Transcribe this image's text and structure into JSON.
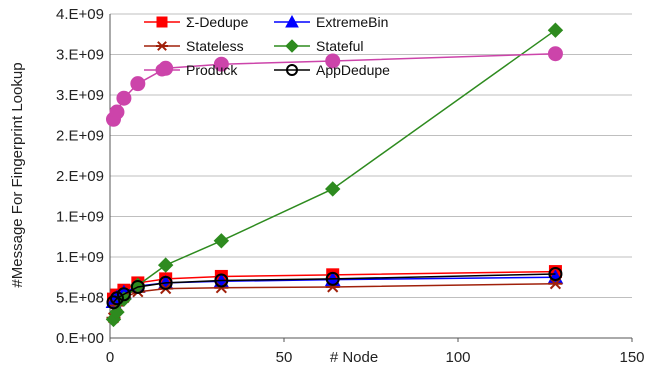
{
  "chart_data": {
    "type": "line",
    "xlabel": "# Node",
    "ylabel": "#Message For Fingerprint Lookup",
    "xlim": [
      0,
      150
    ],
    "ylim": [
      0,
      4000000000
    ],
    "xticks": [
      0,
      50,
      100,
      150
    ],
    "xtick_labels": [
      "0",
      "50",
      "100",
      "150"
    ],
    "yticks": [
      0,
      500000000,
      1000000000,
      1500000000,
      2000000000,
      2500000000,
      3000000000,
      3500000000,
      4000000000
    ],
    "ytick_labels": [
      "0.E+00",
      "5.E+08",
      "1.E+09",
      "1.E+09",
      "2.E+09",
      "2.E+09",
      "3.E+09",
      "3.E+09",
      "4.E+09"
    ],
    "legend_position": "top-center",
    "x": [
      1,
      2,
      4,
      8,
      16,
      32,
      64,
      128
    ],
    "series": [
      {
        "name": "Σ-Dedupe",
        "values": [
          480000000,
          530000000,
          590000000,
          680000000,
          730000000,
          760000000,
          780000000,
          820000000
        ],
        "color": "#ff0000",
        "marker": "square"
      },
      {
        "name": "ExtremeBin",
        "values": [
          450000000,
          500000000,
          560000000,
          640000000,
          680000000,
          700000000,
          720000000,
          750000000
        ],
        "color": "#0000ff",
        "marker": "triangle"
      },
      {
        "name": "Stateless",
        "values": [
          250000000,
          400000000,
          500000000,
          570000000,
          610000000,
          620000000,
          630000000,
          670000000
        ],
        "color": "#a0200a",
        "marker": "asterisk"
      },
      {
        "name": "Stateful",
        "values": [
          230000000,
          320000000,
          480000000,
          650000000,
          900000000,
          1200000000,
          1840000000,
          3800000000
        ],
        "color": "#2e8b1f",
        "marker": "diamond"
      },
      {
        "name": "Produck",
        "values": [
          2700000000,
          2790000000,
          2960000000,
          3140000000,
          3330000000,
          3380000000,
          3420000000,
          3510000000
        ],
        "color": "#cc44aa",
        "marker": "circle"
      },
      {
        "name": "AppDedupe",
        "values": [
          440000000,
          490000000,
          540000000,
          630000000,
          680000000,
          710000000,
          730000000,
          790000000
        ],
        "color": "#000000",
        "marker": "open-circle"
      }
    ]
  }
}
